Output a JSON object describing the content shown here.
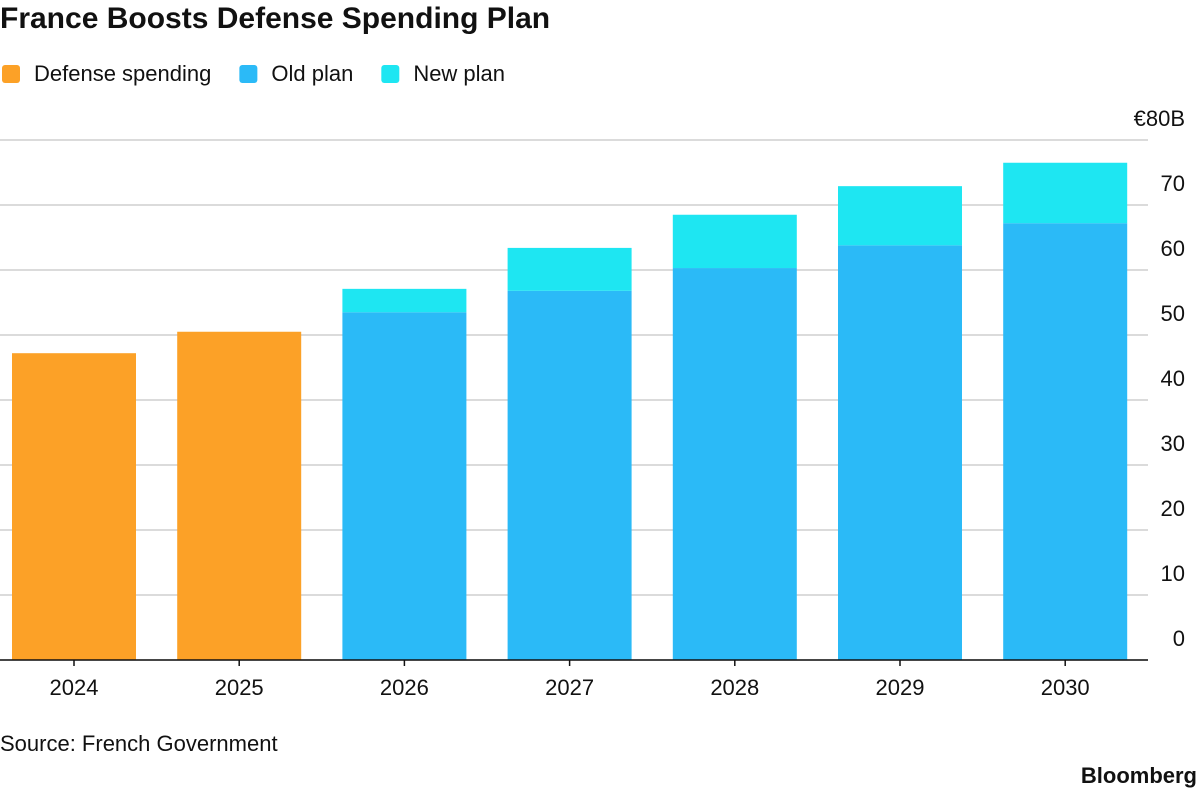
{
  "chart_data": {
    "type": "stacked-bar",
    "title": "France Boosts Defense Spending Plan",
    "categories": [
      "2024",
      "2025",
      "2026",
      "2027",
      "2028",
      "2029",
      "2030"
    ],
    "series": [
      {
        "name": "Defense spending",
        "color": "#fca127",
        "values": [
          47.2,
          50.5,
          null,
          null,
          null,
          null,
          null
        ]
      },
      {
        "name": "Old plan",
        "color": "#2bbaf7",
        "values": [
          null,
          null,
          53.5,
          56.8,
          60.3,
          63.8,
          67.2
        ]
      },
      {
        "name": "New plan",
        "color": "#1ee6f2",
        "values": [
          null,
          null,
          3.6,
          6.6,
          8.2,
          9.1,
          9.3
        ]
      }
    ],
    "ylim": [
      0,
      80
    ],
    "yticks": [
      0,
      10,
      20,
      30,
      40,
      50,
      60,
      70,
      {
        "value": 80,
        "label": "€80B"
      }
    ],
    "grid": true,
    "source": "Source: French Government",
    "brand": "Bloomberg"
  }
}
